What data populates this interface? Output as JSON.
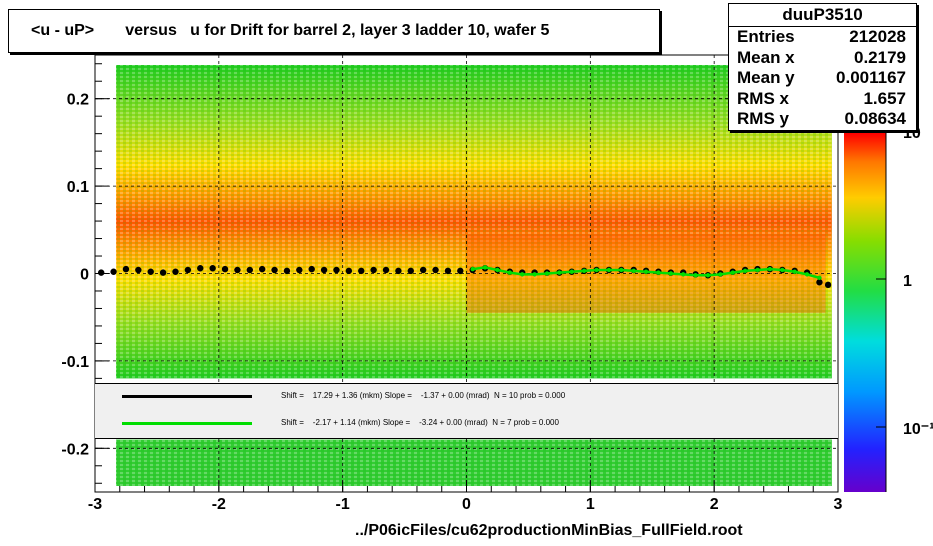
{
  "title": "<u - uP>       versus   u for Drift for barrel 2, layer 3 ladder 10, wafer 5",
  "stats": {
    "name": "duuP3510",
    "rows": [
      {
        "label": "Entries",
        "value": "212028"
      },
      {
        "label": "Mean x",
        "value": "0.2179"
      },
      {
        "label": "Mean y",
        "value": "0.001167"
      },
      {
        "label": "RMS x",
        "value": "1.657"
      },
      {
        "label": "RMS y",
        "value": "0.08634"
      }
    ]
  },
  "legend": {
    "black_text": "Shift =    17.29 + 1.36 (mkm) Slope =    -1.37 + 0.00 (mrad)  N = 10 prob = 0.000",
    "green_text": "Shift =    -2.17 + 1.14 (mkm) Slope =    -3.24 + 0.00 (mrad)  N = 7 prob = 0.000"
  },
  "footer": "../P06icFiles/cu62productionMinBias_FullField.root",
  "colors": {
    "black_series": "#000000",
    "green_series": "#00dd00",
    "palette_low": "#6600cc",
    "palette_high": "#ff0000"
  },
  "chart_data": {
    "type": "heatmap",
    "title": "<u - uP>       versus   u for Drift for barrel 2, layer 3 ladder 10, wafer 5",
    "xlim": [
      -3,
      3
    ],
    "ylim": [
      -0.25,
      0.25
    ],
    "x_ticks": [
      -3,
      -2,
      -1,
      0,
      1,
      2,
      3
    ],
    "x_tick_labels": [
      "-3",
      "-2",
      "-1",
      "0",
      "1",
      "2",
      "3"
    ],
    "y_ticks": [
      -0.2,
      -0.1,
      0,
      0.1,
      0.2
    ],
    "y_tick_labels": [
      "-0.2",
      "-0.1",
      "0",
      "0.1",
      "0.2"
    ],
    "colorbar_labels": [
      "10",
      "1",
      "10⁻¹"
    ],
    "grid": true,
    "series": [
      {
        "color": "#000000",
        "x": [
          -2.95,
          -2.85,
          -2.75,
          -2.65,
          -2.55,
          -2.45,
          -2.35,
          -2.25,
          -2.15,
          -2.05,
          -1.95,
          -1.85,
          -1.75,
          -1.65,
          -1.55,
          -1.45,
          -1.35,
          -1.25,
          -1.15,
          -1.05,
          -0.95,
          -0.85,
          -0.75,
          -0.65,
          -0.55,
          -0.45,
          -0.35,
          -0.25,
          -0.15,
          -0.05,
          0.05,
          0.15,
          0.25,
          0.35,
          0.45,
          0.55,
          0.65,
          0.75,
          0.85,
          0.95,
          1.05,
          1.15,
          1.25,
          1.35,
          1.45,
          1.55,
          1.65,
          1.75,
          1.85,
          1.95,
          2.05,
          2.15,
          2.25,
          2.35,
          2.45,
          2.55,
          2.65,
          2.75,
          2.85,
          2.92
        ],
        "y": [
          0.001,
          0.002,
          0.005,
          0.004,
          0.002,
          0.001,
          0.002,
          0.004,
          0.006,
          0.006,
          0.005,
          0.004,
          0.004,
          0.005,
          0.004,
          0.003,
          0.004,
          0.005,
          0.004,
          0.004,
          0.003,
          0.003,
          0.004,
          0.004,
          0.003,
          0.003,
          0.004,
          0.004,
          0.003,
          0.003,
          0.004,
          0.006,
          0.004,
          0.002,
          0.001,
          0.001,
          0.001,
          0.001,
          0.002,
          0.003,
          0.004,
          0.004,
          0.004,
          0.004,
          0.003,
          0.002,
          0.001,
          0.001,
          -0.001,
          -0.002,
          0.0,
          0.002,
          0.004,
          0.005,
          0.005,
          0.004,
          0.003,
          0.001,
          -0.01,
          -0.013
        ]
      },
      {
        "color": "#00dd00",
        "x": [
          0.05,
          0.15,
          0.25,
          0.35,
          0.45,
          0.55,
          0.65,
          0.75,
          0.85,
          0.95,
          1.05,
          1.15,
          1.25,
          1.35,
          1.45,
          1.55,
          1.65,
          1.75,
          1.85,
          1.95,
          2.05,
          2.15,
          2.25,
          2.35,
          2.45,
          2.55,
          2.65,
          2.75,
          2.85
        ],
        "y": [
          0.005,
          0.007,
          0.004,
          0.001,
          -0.001,
          -0.001,
          0.0,
          0.001,
          0.002,
          0.003,
          0.004,
          0.004,
          0.004,
          0.003,
          0.002,
          0.001,
          0.0,
          -0.001,
          -0.002,
          -0.002,
          -0.001,
          0.001,
          0.003,
          0.004,
          0.005,
          0.004,
          0.002,
          -0.001,
          -0.005
        ]
      }
    ]
  }
}
